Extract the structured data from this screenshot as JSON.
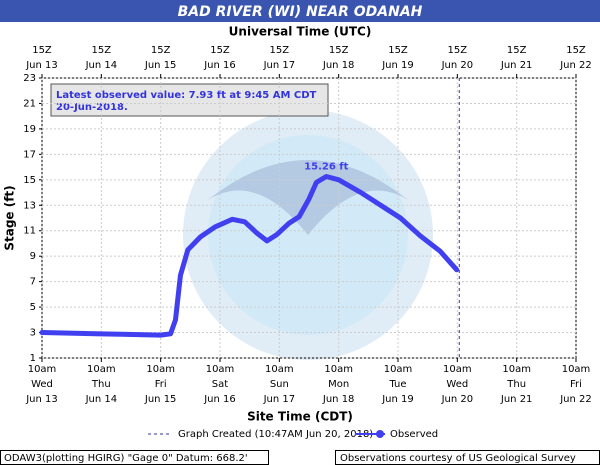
{
  "chart_data": {
    "type": "line",
    "title": "BAD RIVER (WI) NEAR ODANAH",
    "top_axis_label": "Universal Time (UTC)",
    "x_label": "Site Time (CDT)",
    "y_label": "Stage (ft)",
    "xlim": [
      "2018-06-13T10:00",
      "2018-06-22T10:00"
    ],
    "xticks": [
      {
        "value": "2018-06-13T10:00",
        "label": [
          "10am",
          "Wed",
          "Jun 13"
        ]
      },
      {
        "value": "2018-06-14T10:00",
        "label": [
          "10am",
          "Thu",
          "Jun 14"
        ]
      },
      {
        "value": "2018-06-15T10:00",
        "label": [
          "10am",
          "Fri",
          "Jun 15"
        ]
      },
      {
        "value": "2018-06-16T10:00",
        "label": [
          "10am",
          "Sat",
          "Jun 16"
        ]
      },
      {
        "value": "2018-06-17T10:00",
        "label": [
          "10am",
          "Sun",
          "Jun 17"
        ]
      },
      {
        "value": "2018-06-18T10:00",
        "label": [
          "10am",
          "Mon",
          "Jun 18"
        ]
      },
      {
        "value": "2018-06-19T10:00",
        "label": [
          "10am",
          "Tue",
          "Jun 19"
        ]
      },
      {
        "value": "2018-06-20T10:00",
        "label": [
          "10am",
          "Wed",
          "Jun 20"
        ]
      },
      {
        "value": "2018-06-21T10:00",
        "label": [
          "10am",
          "Thu",
          "Jun 21"
        ]
      },
      {
        "value": "2018-06-22T10:00",
        "label": [
          "10am",
          "Fri",
          "Jun 22"
        ]
      }
    ],
    "x2ticks": [
      {
        "value": "2018-06-13T10:00",
        "label": [
          "15Z",
          "Jun 13"
        ]
      },
      {
        "value": "2018-06-14T10:00",
        "label": [
          "15Z",
          "Jun 14"
        ]
      },
      {
        "value": "2018-06-15T10:00",
        "label": [
          "15Z",
          "Jun 15"
        ]
      },
      {
        "value": "2018-06-16T10:00",
        "label": [
          "15Z",
          "Jun 16"
        ]
      },
      {
        "value": "2018-06-17T10:00",
        "label": [
          "15Z",
          "Jun 17"
        ]
      },
      {
        "value": "2018-06-18T10:00",
        "label": [
          "15Z",
          "Jun 18"
        ]
      },
      {
        "value": "2018-06-19T10:00",
        "label": [
          "15Z",
          "Jun 19"
        ]
      },
      {
        "value": "2018-06-20T10:00",
        "label": [
          "15Z",
          "Jun 20"
        ]
      },
      {
        "value": "2018-06-21T10:00",
        "label": [
          "15Z",
          "Jun 21"
        ]
      },
      {
        "value": "2018-06-22T10:00",
        "label": [
          "15Z",
          "Jun 22"
        ]
      }
    ],
    "ylim": [
      1,
      23
    ],
    "yticks": [
      1,
      3,
      5,
      7,
      9,
      11,
      13,
      15,
      17,
      19,
      21,
      23
    ],
    "grid": true,
    "x": [
      "2018-06-13T10:00",
      "2018-06-14T10:00",
      "2018-06-15T10:00",
      "2018-06-15T14:00",
      "2018-06-15T16:00",
      "2018-06-15T18:00",
      "2018-06-15T21:00",
      "2018-06-16T02:00",
      "2018-06-16T08:00",
      "2018-06-16T15:00",
      "2018-06-16T20:00",
      "2018-06-17T01:00",
      "2018-06-17T05:00",
      "2018-06-17T09:00",
      "2018-06-17T14:00",
      "2018-06-17T18:00",
      "2018-06-17T22:00",
      "2018-06-18T01:00",
      "2018-06-18T05:00",
      "2018-06-18T10:00",
      "2018-06-18T19:00",
      "2018-06-19T03:00",
      "2018-06-19T11:00",
      "2018-06-19T19:00",
      "2018-06-20T03:00",
      "2018-06-20T09:45"
    ],
    "series": [
      {
        "name": "Observed",
        "color": "#4040f0",
        "values": [
          3.0,
          2.9,
          2.8,
          2.9,
          4.0,
          7.5,
          9.5,
          10.5,
          11.3,
          11.9,
          11.7,
          10.8,
          10.2,
          10.7,
          11.6,
          12.1,
          13.5,
          14.8,
          15.26,
          15.0,
          14.0,
          13.0,
          12.0,
          10.6,
          9.4,
          7.93
        ]
      }
    ],
    "graph_created": {
      "value": "2018-06-20T10:47",
      "name": "Graph Created (10:47AM Jun 20, 2018)",
      "color": "#3333aa"
    },
    "peak_label": "15.26 ft",
    "latest_label": [
      "Latest observed value: 7.93 ft at 9:45 AM CDT",
      "20-Jun-2018."
    ],
    "footer_left": "ODAW3(plotting HGIRG) \"Gage 0\" Datum: 668.2'",
    "footer_right": "Observations courtesy of US Geological Survey"
  }
}
